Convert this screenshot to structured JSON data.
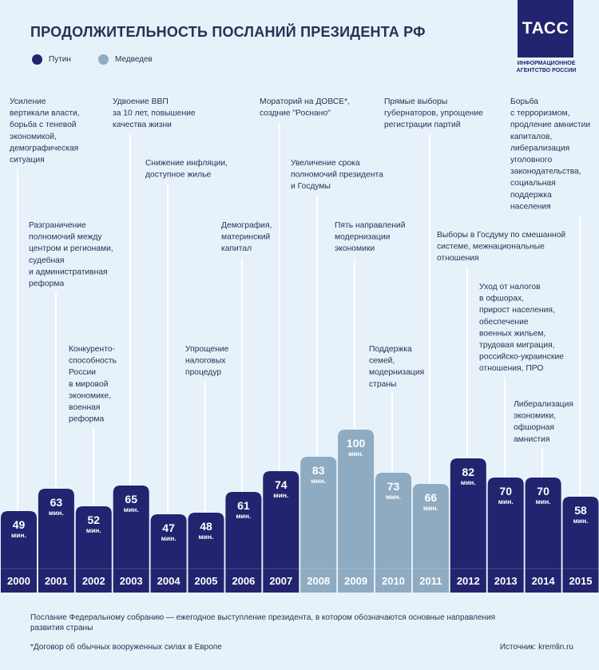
{
  "header": {
    "title": "ПРОДОЛЖИТЕЛЬНОСТЬ ПОСЛАНИЙ ПРЕЗИДЕНТА РФ",
    "logo_text": "ТАСС",
    "logo_subtitle": "ИНФОРМАЦИОННОЕ АГЕНТСТВО РОССИИ"
  },
  "colors": {
    "putin": "#22246f",
    "medvedev": "#8fabc2",
    "background": "#e7f1fa",
    "leader_line": "#ffffff",
    "text": "#2b2f55"
  },
  "chart_data": {
    "type": "bar",
    "unit_label": "мин.",
    "categories": [
      "2000",
      "2001",
      "2002",
      "2003",
      "2004",
      "2005",
      "2006",
      "2007",
      "2008",
      "2009",
      "2010",
      "2011",
      "2012",
      "2013",
      "2014",
      "2015"
    ],
    "values": [
      49,
      63,
      52,
      65,
      47,
      48,
      61,
      74,
      83,
      100,
      73,
      66,
      82,
      70,
      70,
      58
    ],
    "president": [
      "putin",
      "putin",
      "putin",
      "putin",
      "putin",
      "putin",
      "putin",
      "putin",
      "medvedev",
      "medvedev",
      "medvedev",
      "medvedev",
      "putin",
      "putin",
      "putin",
      "putin"
    ],
    "legend": [
      {
        "key": "putin",
        "label": "Путин"
      },
      {
        "key": "medvedev",
        "label": "Медведев"
      }
    ],
    "annotations": [
      {
        "year": "2000",
        "lines": [
          "Усиление",
          "вертикали власти,",
          "борьба с теневой",
          "экономикой,",
          "демографическая",
          "ситуация"
        ]
      },
      {
        "year": "2001",
        "lines": [
          "Разграничение",
          "полномочий между",
          "центром и регионами,",
          "судебная",
          "и административная",
          "реформа"
        ]
      },
      {
        "year": "2002",
        "lines": [
          "Конкуренто-",
          "способность",
          "России",
          "в мировой",
          "экономике,",
          "военная",
          "реформа"
        ]
      },
      {
        "year": "2003",
        "lines": [
          "Удвоение ВВП",
          "за 10 лет, повышение",
          "качества жизни"
        ]
      },
      {
        "year": "2004",
        "lines": [
          "Снижение инфляции,",
          "доступное жилье"
        ]
      },
      {
        "year": "2005",
        "lines": [
          "Упрощение",
          "налоговых",
          "процедур"
        ]
      },
      {
        "year": "2006",
        "lines": [
          "Демография,",
          "материнский",
          "капитал"
        ]
      },
      {
        "year": "2007",
        "lines": [
          "Мораторий на ДОВСЕ*,",
          "создние \"Роснано\""
        ]
      },
      {
        "year": "2008",
        "lines": [
          "Увеличение срока",
          "полномочий президента",
          "и Госдумы"
        ]
      },
      {
        "year": "2009",
        "lines": [
          "Пять направлений",
          "модернизации",
          "экономики"
        ]
      },
      {
        "year": "2010",
        "lines": [
          "Поддержка",
          "семей,",
          "модернизация",
          "страны"
        ]
      },
      {
        "year": "2011",
        "lines": [
          "Прямые выборы",
          "губернаторов, упрощение",
          "регистрации партий"
        ]
      },
      {
        "year": "2012",
        "lines": [
          "Выборы в Госдуму по смешанной",
          "системе, межнациональные",
          "отношения"
        ]
      },
      {
        "year": "2013",
        "lines": [
          "Уход от налогов",
          "в офшорах,",
          "прирост населения,",
          "обеспечение",
          "военных жильем,",
          "трудовая миграция,",
          "российско-украинские",
          "отношения, ПРО"
        ]
      },
      {
        "year": "2014",
        "lines": [
          "Либерализация",
          "экономики,",
          "офшорная",
          "амнистия"
        ]
      },
      {
        "year": "2015",
        "lines": [
          "Борьба",
          "с терроризмом,",
          "продление амнистии",
          "капиталов,",
          "либерализация",
          "уголовного",
          "законодательства,",
          "социальная",
          "поддержка",
          "населения"
        ]
      }
    ]
  },
  "footer": {
    "note": "Послание Федеральному собранию — ежегодное выступление президента, в котором обозначаются основные направления развития страны",
    "footnote": "*Договор об обычных вооруженных силах в Европе",
    "source": "Источник: kremlin.ru"
  }
}
